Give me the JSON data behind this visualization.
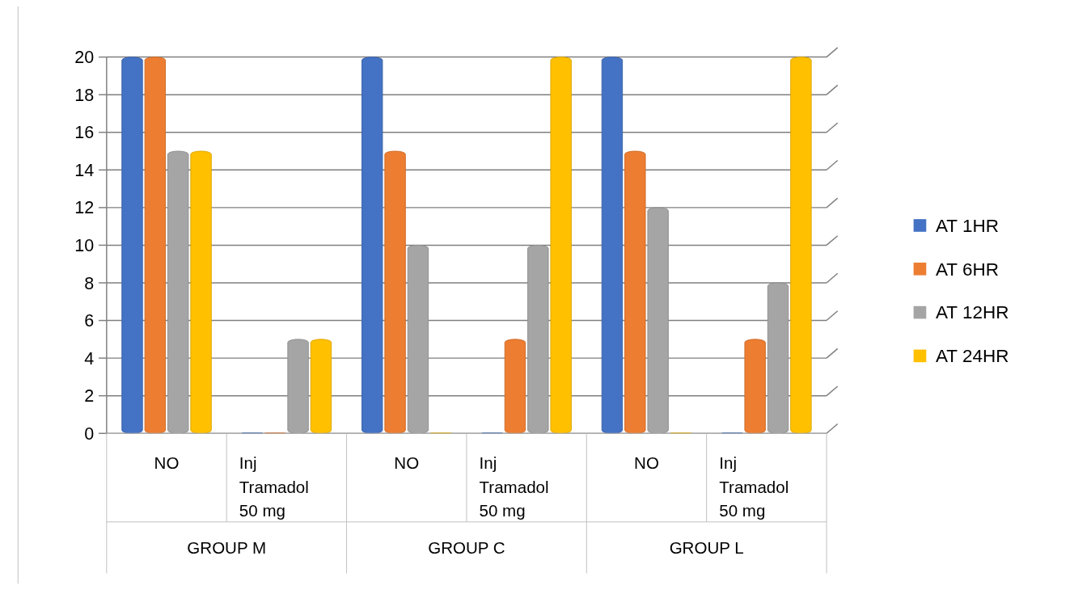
{
  "chart_data": {
    "type": "bar",
    "categories": [
      "NO",
      "Inj Tramadol 50 mg",
      "NO",
      "Inj Tramadol 50 mg",
      "NO",
      "Inj Tramadol 50 mg"
    ],
    "annotations": [
      "GROUP M",
      "GROUP C",
      "GROUP L"
    ],
    "series": [
      {
        "name": "AT 1HR",
        "color": "#4472c4",
        "values": [
          20,
          0,
          20,
          0,
          20,
          0
        ]
      },
      {
        "name": "AT 6HR",
        "color": "#ed7d31",
        "values": [
          20,
          0,
          15,
          5,
          15,
          5
        ]
      },
      {
        "name": "AT 12HR",
        "color": "#a5a5a5",
        "values": [
          15,
          5,
          10,
          10,
          12,
          8
        ]
      },
      {
        "name": "AT 24HR",
        "color": "#ffc000",
        "values": [
          15,
          5,
          0,
          20,
          0,
          20
        ]
      }
    ],
    "ylim": [
      0,
      20
    ],
    "yticks": [
      0,
      2,
      4,
      6,
      8,
      10,
      12,
      14,
      16,
      18,
      20
    ],
    "grid": "y",
    "legend": "right"
  }
}
